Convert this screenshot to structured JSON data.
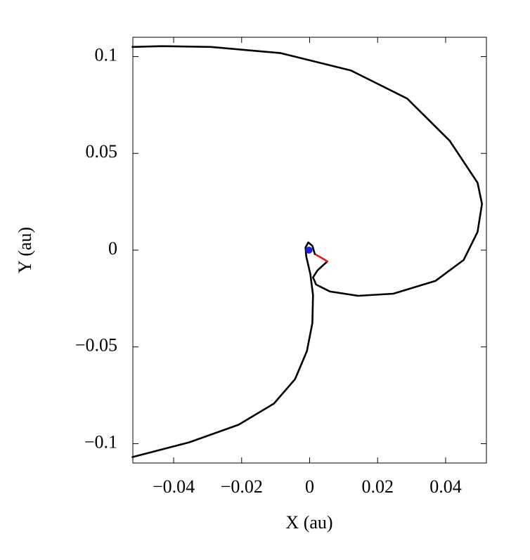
{
  "chart_data": {
    "type": "line",
    "xlabel": "X (au)",
    "ylabel": "Y (au)",
    "xlim": [
      -0.052,
      0.052
    ],
    "ylim": [
      -0.11,
      0.11
    ],
    "xticks": [
      {
        "value": -0.04,
        "label": "−0.04"
      },
      {
        "value": -0.02,
        "label": "−0.02"
      },
      0,
      0.02,
      0.04
    ],
    "yticks": [
      {
        "value": -0.1,
        "label": "−0.1"
      },
      {
        "value": -0.05,
        "label": "−0.05"
      },
      0,
      0.05,
      0.1
    ],
    "series": [
      {
        "color": "#000000",
        "style": "line",
        "x": [
          -0.0521,
          -0.0436,
          -0.029,
          -0.0085,
          0.0122,
          0.0287,
          0.0412,
          0.0494,
          0.0507,
          0.0494,
          0.0453,
          0.037,
          0.0246,
          0.0143,
          0.006,
          0.0019,
          0.001,
          0.0023,
          0.0052
        ],
        "values": [
          0.105,
          0.1054,
          0.105,
          0.1018,
          0.0928,
          0.0783,
          0.0565,
          0.0348,
          0.0239,
          0.0094,
          -0.0051,
          -0.0159,
          -0.0225,
          -0.0236,
          -0.0214,
          -0.0178,
          -0.0141,
          -0.0105,
          -0.0058
        ]
      },
      {
        "color": "#e31a1c",
        "style": "line",
        "x": [
          0.0052,
          0.0035,
          0.0015
        ],
        "values": [
          -0.0058,
          -0.004,
          -0.002
        ]
      },
      {
        "color": "#000000",
        "style": "line",
        "x": [
          0.0015,
          0.0008,
          -0.0004,
          -0.0012,
          -0.001,
          0.0002,
          0.001,
          0.0008,
          -0.0008,
          -0.0043,
          -0.0105,
          -0.0209,
          -0.0354,
          -0.0521
        ],
        "values": [
          -0.002,
          0.0022,
          0.004,
          0.0014,
          -0.0033,
          -0.0123,
          -0.0232,
          -0.0377,
          -0.0522,
          -0.0667,
          -0.0793,
          -0.0902,
          -0.0993,
          -0.1069
        ]
      },
      {
        "color": "#1f1fe0",
        "style": "point",
        "x": [
          -0.0002
        ],
        "values": [
          0
        ]
      }
    ]
  }
}
